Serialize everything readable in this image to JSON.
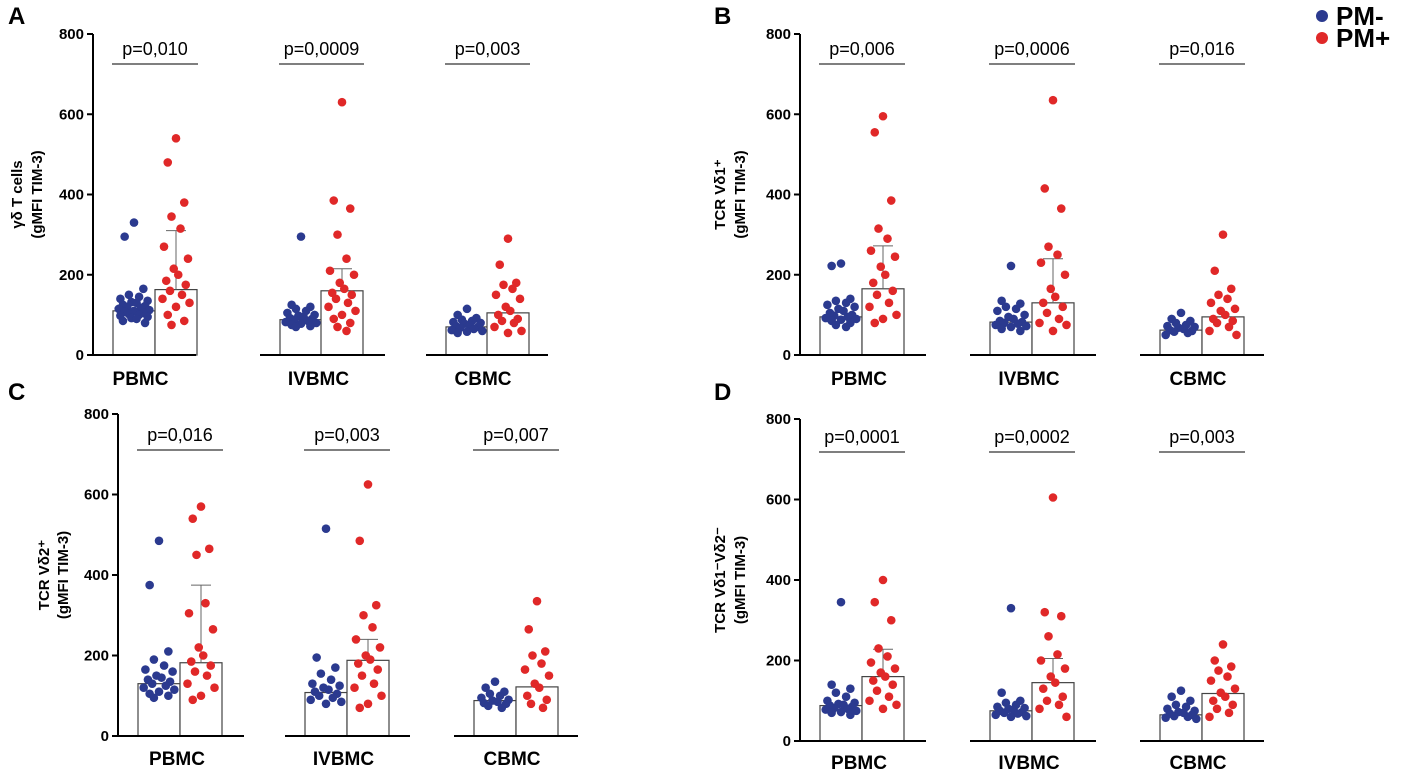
{
  "legend": [
    {
      "label": "PM-",
      "color": "#2b3a8f"
    },
    {
      "label": "PM+",
      "color": "#e02828"
    }
  ],
  "colors": {
    "pm_minus": "#2b3a8f",
    "pm_plus": "#e02828",
    "axis": "#000000",
    "sig_line": "#555555"
  },
  "chart_data": [
    {
      "panel": "A",
      "type": "scatter",
      "ylabel_line1": "γδ T cells",
      "ylabel_line2": "(gMFI TIM-3)",
      "ylim": [
        0,
        800
      ],
      "yticks": [
        0,
        200,
        400,
        600,
        800
      ],
      "categories": [
        "PBMC",
        "IVBMC",
        "CBMC"
      ],
      "pvalues": [
        "p=0,010",
        "p=0,0009",
        "p=0,003"
      ],
      "bars": {
        "PM-": [
          110,
          88,
          70
        ],
        "PM+": [
          163,
          160,
          105
        ]
      },
      "error_upper": {
        "PM-": [
          null,
          null,
          null
        ],
        "PM+": [
          310,
          215,
          null
        ]
      },
      "series": [
        {
          "name": "PM-",
          "groups": [
            [
              330,
              295,
              165,
              150,
              145,
              140,
              135,
              132,
              130,
              125,
              122,
              120,
              118,
              115,
              112,
              110,
              108,
              105,
              102,
              100,
              98,
              95,
              92,
              90,
              85,
              80
            ],
            [
              295,
              125,
              120,
              115,
              110,
              105,
              100,
              98,
              95,
              92,
              90,
              88,
              85,
              82,
              80,
              78,
              75,
              72,
              70
            ],
            [
              115,
              100,
              92,
              88,
              85,
              82,
              80,
              78,
              75,
              72,
              70,
              68,
              65,
              62,
              60,
              58,
              55
            ]
          ]
        },
        {
          "name": "PM+",
          "groups": [
            [
              540,
              480,
              380,
              345,
              315,
              270,
              240,
              215,
              200,
              185,
              175,
              160,
              150,
              140,
              130,
              120,
              100,
              85,
              75
            ],
            [
              630,
              385,
              365,
              300,
              240,
              210,
              200,
              180,
              165,
              155,
              150,
              140,
              130,
              120,
              110,
              100,
              90,
              80,
              70,
              60
            ],
            [
              290,
              225,
              180,
              175,
              165,
              150,
              140,
              120,
              110,
              100,
              90,
              85,
              80,
              70,
              60,
              55
            ]
          ]
        }
      ]
    },
    {
      "panel": "B",
      "type": "scatter",
      "ylabel_line1": "TCR Vδ1⁺",
      "ylabel_line2": "(gMFI TIM-3)",
      "ylim": [
        0,
        800
      ],
      "yticks": [
        0,
        200,
        400,
        600,
        800
      ],
      "categories": [
        "PBMC",
        "IVBMC",
        "CBMC"
      ],
      "pvalues": [
        "p=0,006",
        "p=0,0006",
        "p=0,016"
      ],
      "bars": {
        "PM-": [
          95,
          82,
          62
        ],
        "PM+": [
          165,
          130,
          95
        ]
      },
      "error_upper": {
        "PM-": [
          null,
          null,
          null
        ],
        "PM+": [
          272,
          240,
          null
        ]
      },
      "series": [
        {
          "name": "PM-",
          "groups": [
            [
              228,
              222,
              140,
              135,
              130,
              125,
              120,
              115,
              110,
              105,
              100,
              98,
              95,
              92,
              90,
              88,
              85,
              80,
              75,
              70
            ],
            [
              222,
              135,
              128,
              120,
              115,
              110,
              100,
              95,
              90,
              85,
              82,
              80,
              78,
              75,
              72,
              70,
              65,
              60
            ],
            [
              105,
              90,
              85,
              80,
              75,
              72,
              70,
              68,
              65,
              62,
              60,
              58,
              55,
              50
            ]
          ]
        },
        {
          "name": "PM+",
          "groups": [
            [
              595,
              555,
              385,
              315,
              290,
              260,
              245,
              220,
              200,
              180,
              160,
              150,
              130,
              120,
              100,
              90,
              80
            ],
            [
              635,
              415,
              365,
              270,
              250,
              230,
              200,
              165,
              145,
              130,
              120,
              105,
              90,
              80,
              75,
              60
            ],
            [
              300,
              210,
              165,
              150,
              140,
              130,
              115,
              110,
              100,
              90,
              85,
              80,
              70,
              60,
              50
            ]
          ]
        }
      ]
    },
    {
      "panel": "C",
      "type": "scatter",
      "ylabel_line1": "TCR Vδ2⁺",
      "ylabel_line2": "(gMFI TIM-3)",
      "ylim": [
        0,
        800
      ],
      "yticks": [
        0,
        200,
        400,
        600,
        800
      ],
      "categories": [
        "PBMC",
        "IVBMC",
        "CBMC"
      ],
      "pvalues": [
        "p=0,016",
        "p=0,003",
        "p=0,007"
      ],
      "bars": {
        "PM-": [
          130,
          108,
          88
        ],
        "PM+": [
          182,
          188,
          122
        ]
      },
      "error_upper": {
        "PM-": [
          null,
          null,
          null
        ],
        "PM+": [
          375,
          240,
          null
        ]
      },
      "series": [
        {
          "name": "PM-",
          "groups": [
            [
              485,
              375,
              210,
              190,
              175,
              165,
              160,
              150,
              145,
              140,
              135,
              130,
              125,
              120,
              115,
              110,
              105,
              100,
              95
            ],
            [
              515,
              195,
              170,
              155,
              140,
              130,
              125,
              120,
              115,
              110,
              105,
              100,
              95,
              90,
              85,
              80
            ],
            [
              135,
              120,
              110,
              105,
              100,
              95,
              90,
              88,
              85,
              82,
              80,
              75,
              70
            ]
          ]
        },
        {
          "name": "PM+",
          "groups": [
            [
              570,
              540,
              465,
              450,
              330,
              305,
              265,
              220,
              200,
              185,
              175,
              160,
              150,
              130,
              120,
              100,
              90
            ],
            [
              625,
              485,
              325,
              300,
              270,
              240,
              220,
              200,
              190,
              180,
              165,
              150,
              130,
              120,
              100,
              80,
              70
            ],
            [
              335,
              265,
              210,
              200,
              180,
              165,
              150,
              130,
              120,
              100,
              90,
              80,
              70
            ]
          ]
        }
      ]
    },
    {
      "panel": "D",
      "type": "scatter",
      "ylabel_line1": "TCR Vδ1⁻Vδ2⁻",
      "ylabel_line2": "(gMFI TIM-3)",
      "ylim": [
        0,
        800
      ],
      "yticks": [
        0,
        200,
        400,
        600,
        800
      ],
      "categories": [
        "PBMC",
        "IVBMC",
        "CBMC"
      ],
      "pvalues": [
        "p=0,0001",
        "p=0,0002",
        "p=0,003"
      ],
      "bars": {
        "PM-": [
          88,
          75,
          65
        ],
        "PM+": [
          160,
          145,
          118
        ]
      },
      "error_upper": {
        "PM-": [
          null,
          null,
          null
        ],
        "PM+": [
          228,
          205,
          null
        ]
      },
      "series": [
        {
          "name": "PM-",
          "groups": [
            [
              345,
              140,
              130,
              120,
              110,
              100,
              95,
              92,
              90,
              88,
              85,
              82,
              80,
              78,
              75,
              72,
              70,
              65
            ],
            [
              330,
              120,
              100,
              95,
              90,
              85,
              82,
              80,
              78,
              75,
              72,
              70,
              68,
              65,
              62,
              60
            ],
            [
              125,
              110,
              100,
              90,
              85,
              80,
              75,
              72,
              70,
              68,
              65,
              62,
              60,
              58,
              55
            ]
          ]
        },
        {
          "name": "PM+",
          "groups": [
            [
              400,
              345,
              300,
              230,
              210,
              195,
              180,
              170,
              160,
              150,
              140,
              125,
              110,
              100,
              90,
              80
            ],
            [
              605,
              320,
              310,
              260,
              215,
              200,
              180,
              160,
              145,
              130,
              110,
              100,
              90,
              80,
              60
            ],
            [
              240,
              200,
              185,
              175,
              160,
              150,
              130,
              120,
              110,
              100,
              90,
              80,
              70,
              60
            ]
          ]
        }
      ]
    }
  ]
}
